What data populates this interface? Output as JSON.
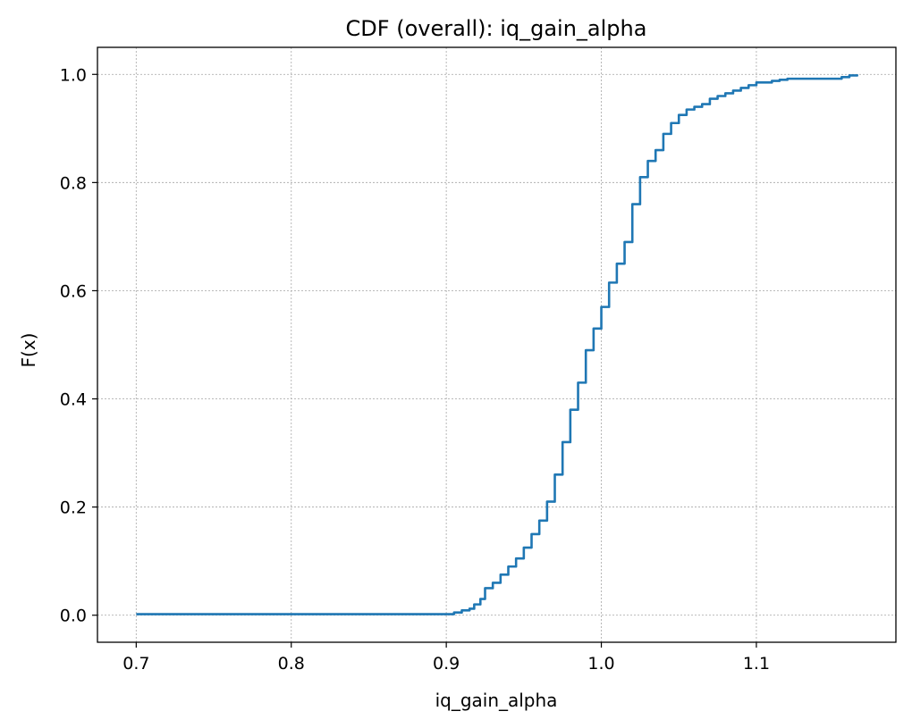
{
  "chart_data": {
    "type": "line",
    "title": "CDF (overall): iq_gain_alpha",
    "xlabel": "iq_gain_alpha",
    "ylabel": "F(x)",
    "xlim": [
      0.675,
      1.19
    ],
    "ylim": [
      -0.05,
      1.05
    ],
    "x_ticks": [
      0.7,
      0.8,
      0.9,
      1.0,
      1.1
    ],
    "x_tick_labels": [
      "0.7",
      "0.8",
      "0.9",
      "1.0",
      "1.1"
    ],
    "y_ticks": [
      0.0,
      0.2,
      0.4,
      0.6,
      0.8,
      1.0
    ],
    "y_tick_labels": [
      "0.0",
      "0.2",
      "0.4",
      "0.6",
      "0.8",
      "1.0"
    ],
    "grid": true,
    "series_color": "#1f77b4",
    "series": [
      {
        "x": [
          0.7,
          0.75,
          0.8,
          0.85,
          0.9,
          0.905,
          0.91,
          0.915,
          0.918,
          0.922,
          0.925,
          0.93,
          0.935,
          0.94,
          0.945,
          0.95,
          0.955,
          0.96,
          0.965,
          0.97,
          0.975,
          0.98,
          0.985,
          0.99,
          0.995,
          1.0,
          1.005,
          1.01,
          1.015,
          1.02,
          1.025,
          1.03,
          1.035,
          1.04,
          1.045,
          1.05,
          1.055,
          1.06,
          1.065,
          1.07,
          1.075,
          1.08,
          1.085,
          1.09,
          1.095,
          1.1,
          1.105,
          1.11,
          1.115,
          1.12,
          1.13,
          1.14,
          1.15,
          1.155,
          1.16,
          1.165
        ],
        "y": [
          0.002,
          0.002,
          0.002,
          0.002,
          0.002,
          0.005,
          0.009,
          0.012,
          0.02,
          0.03,
          0.05,
          0.06,
          0.075,
          0.09,
          0.105,
          0.125,
          0.15,
          0.175,
          0.21,
          0.26,
          0.32,
          0.38,
          0.43,
          0.49,
          0.53,
          0.57,
          0.615,
          0.65,
          0.69,
          0.76,
          0.81,
          0.84,
          0.86,
          0.89,
          0.91,
          0.925,
          0.935,
          0.94,
          0.945,
          0.955,
          0.96,
          0.965,
          0.97,
          0.975,
          0.98,
          0.985,
          0.985,
          0.988,
          0.99,
          0.992,
          0.992,
          0.992,
          0.992,
          0.995,
          0.998,
          1.0
        ]
      }
    ]
  }
}
